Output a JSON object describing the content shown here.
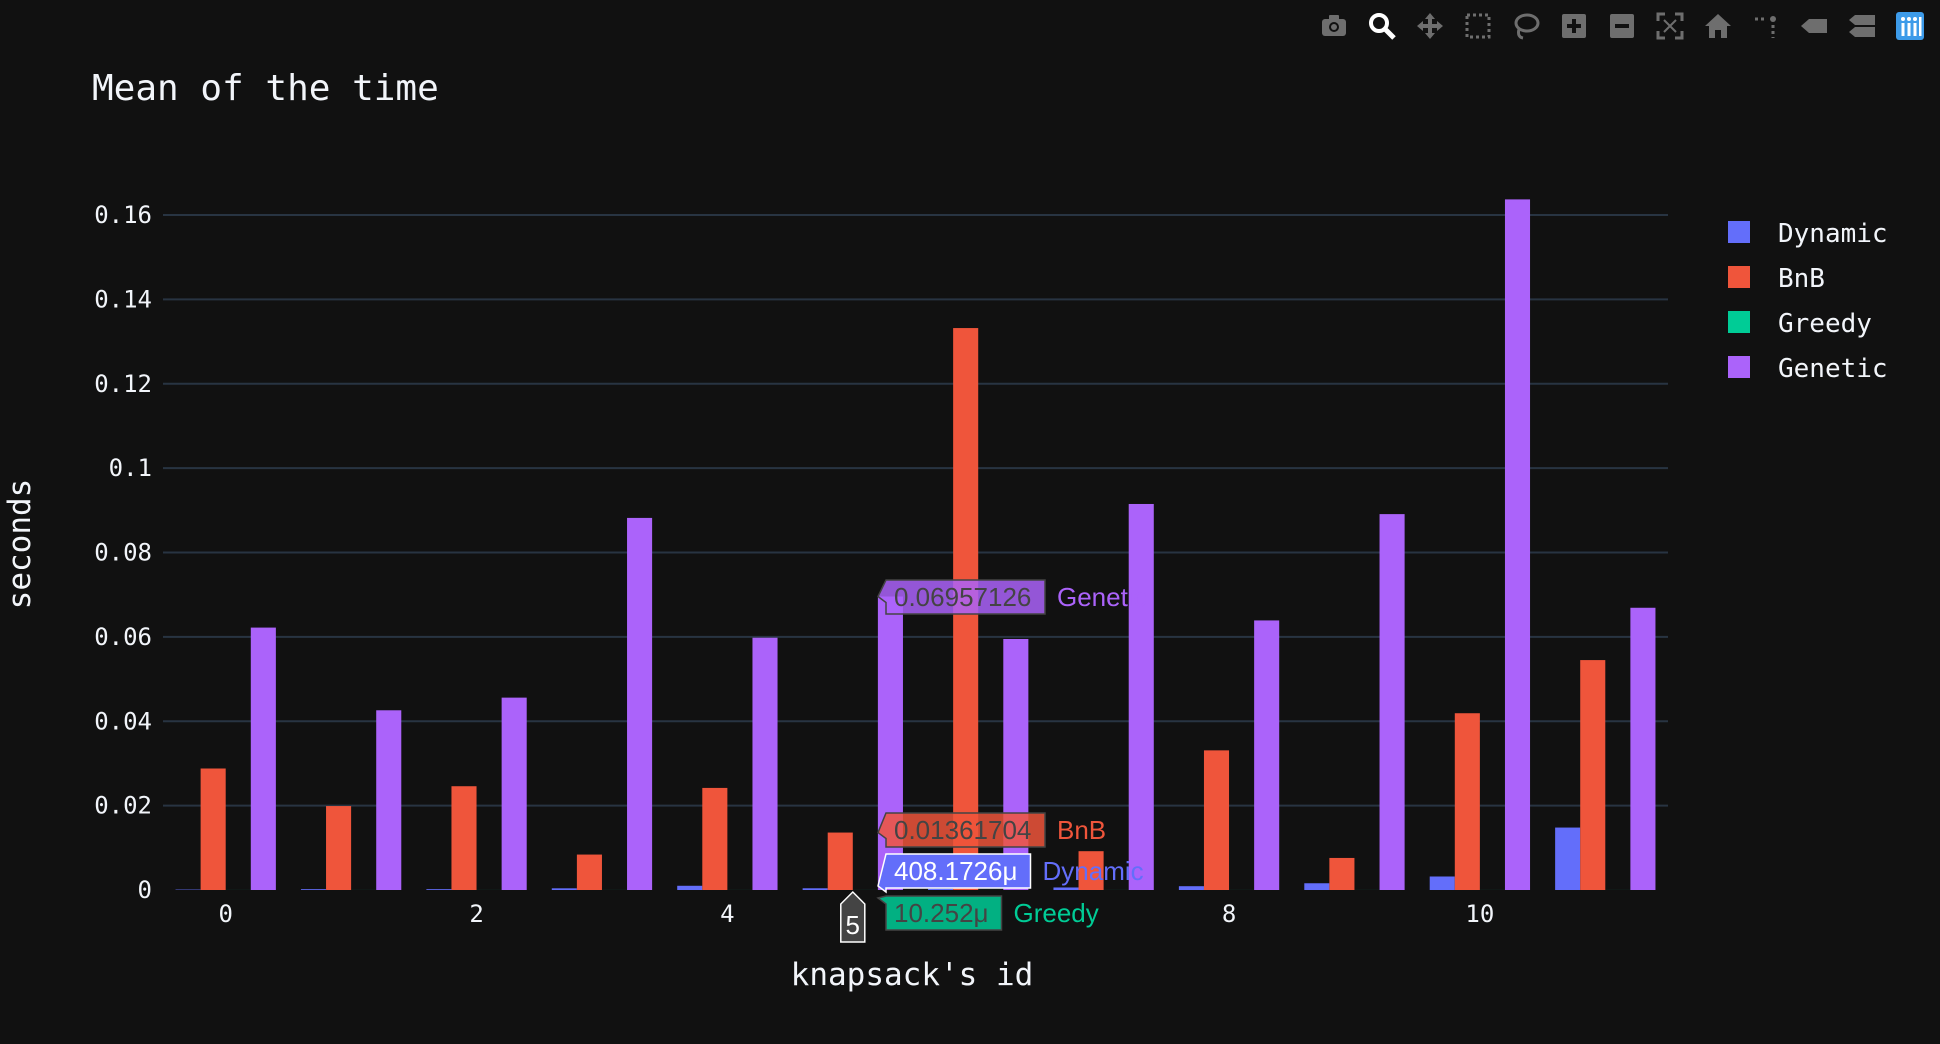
{
  "colors": {
    "background": "#111111",
    "grid": "#283442",
    "text": "#f2f5fa",
    "modebar_icon": "#6e6e6e",
    "modebar_active": "#1f77b4"
  },
  "modebar": {
    "buttons": [
      {
        "name": "camera-icon"
      },
      {
        "name": "zoom-icon"
      },
      {
        "name": "pan-icon"
      },
      {
        "name": "box-select-icon"
      },
      {
        "name": "lasso-icon"
      },
      {
        "name": "zoom-in-icon"
      },
      {
        "name": "zoom-out-icon"
      },
      {
        "name": "autoscale-icon"
      },
      {
        "name": "home-icon"
      },
      {
        "name": "spike-lines-icon"
      },
      {
        "name": "hover-closest-icon"
      },
      {
        "name": "hover-compare-icon"
      },
      {
        "name": "plotly-logo-icon"
      }
    ]
  },
  "chart_data": {
    "type": "bar",
    "title": "Mean of the time",
    "xlabel": "knapsack's id",
    "ylabel": "seconds",
    "x": [
      0,
      1,
      2,
      3,
      4,
      5,
      6,
      7,
      8,
      9,
      10,
      11
    ],
    "xticks": [
      0,
      2,
      4,
      8,
      10
    ],
    "xrange": [
      -0.5,
      11.5
    ],
    "ylim": [
      0,
      0.17
    ],
    "yticks": [
      {
        "value": 0,
        "label": "0"
      },
      {
        "value": 0.02,
        "label": "0.02"
      },
      {
        "value": 0.04,
        "label": "0.04"
      },
      {
        "value": 0.06,
        "label": "0.06"
      },
      {
        "value": 0.08,
        "label": "0.08"
      },
      {
        "value": 0.1,
        "label": "0.1"
      },
      {
        "value": 0.12,
        "label": "0.12"
      },
      {
        "value": 0.14,
        "label": "0.14"
      },
      {
        "value": 0.16,
        "label": "0.16"
      }
    ],
    "grid": true,
    "legend_position": "top-right",
    "series": [
      {
        "name": "Dynamic",
        "color": "#636efa",
        "values": [
          0.0001,
          0.0002,
          0.0002,
          0.0004,
          0.001,
          0.000408,
          0.0003,
          0.0006,
          0.0009,
          0.0016,
          0.0032,
          0.0148
        ]
      },
      {
        "name": "BnB",
        "color": "#ef553b",
        "values": [
          0.0288,
          0.0199,
          0.0246,
          0.0084,
          0.0242,
          0.01361704,
          0.1332,
          0.0092,
          0.0331,
          0.0076,
          0.0419,
          0.0545
        ]
      },
      {
        "name": "Greedy",
        "color": "#00cc96",
        "values": [
          1e-05,
          1e-05,
          1e-05,
          1e-05,
          1e-05,
          1.0252e-05,
          1e-05,
          1e-05,
          1e-05,
          1e-05,
          1e-05,
          1e-05
        ]
      },
      {
        "name": "Genetic",
        "color": "#ab63fa",
        "values": [
          0.0622,
          0.0426,
          0.0456,
          0.0882,
          0.0598,
          0.06957126,
          0.0595,
          0.0915,
          0.0639,
          0.0891,
          0.1637,
          0.0669
        ]
      }
    ],
    "hover": {
      "x_label": "5",
      "x_value": 5,
      "labels": [
        {
          "series": "Genetic",
          "text": "0.06957126",
          "value": 0.06957126
        },
        {
          "series": "BnB",
          "text": "0.01361704",
          "value": 0.01361704
        },
        {
          "series": "Dynamic",
          "text": "408.1726μ",
          "value": 0.000408
        },
        {
          "series": "Greedy",
          "text": "10.252μ",
          "value": 1.0252e-05
        }
      ]
    }
  }
}
